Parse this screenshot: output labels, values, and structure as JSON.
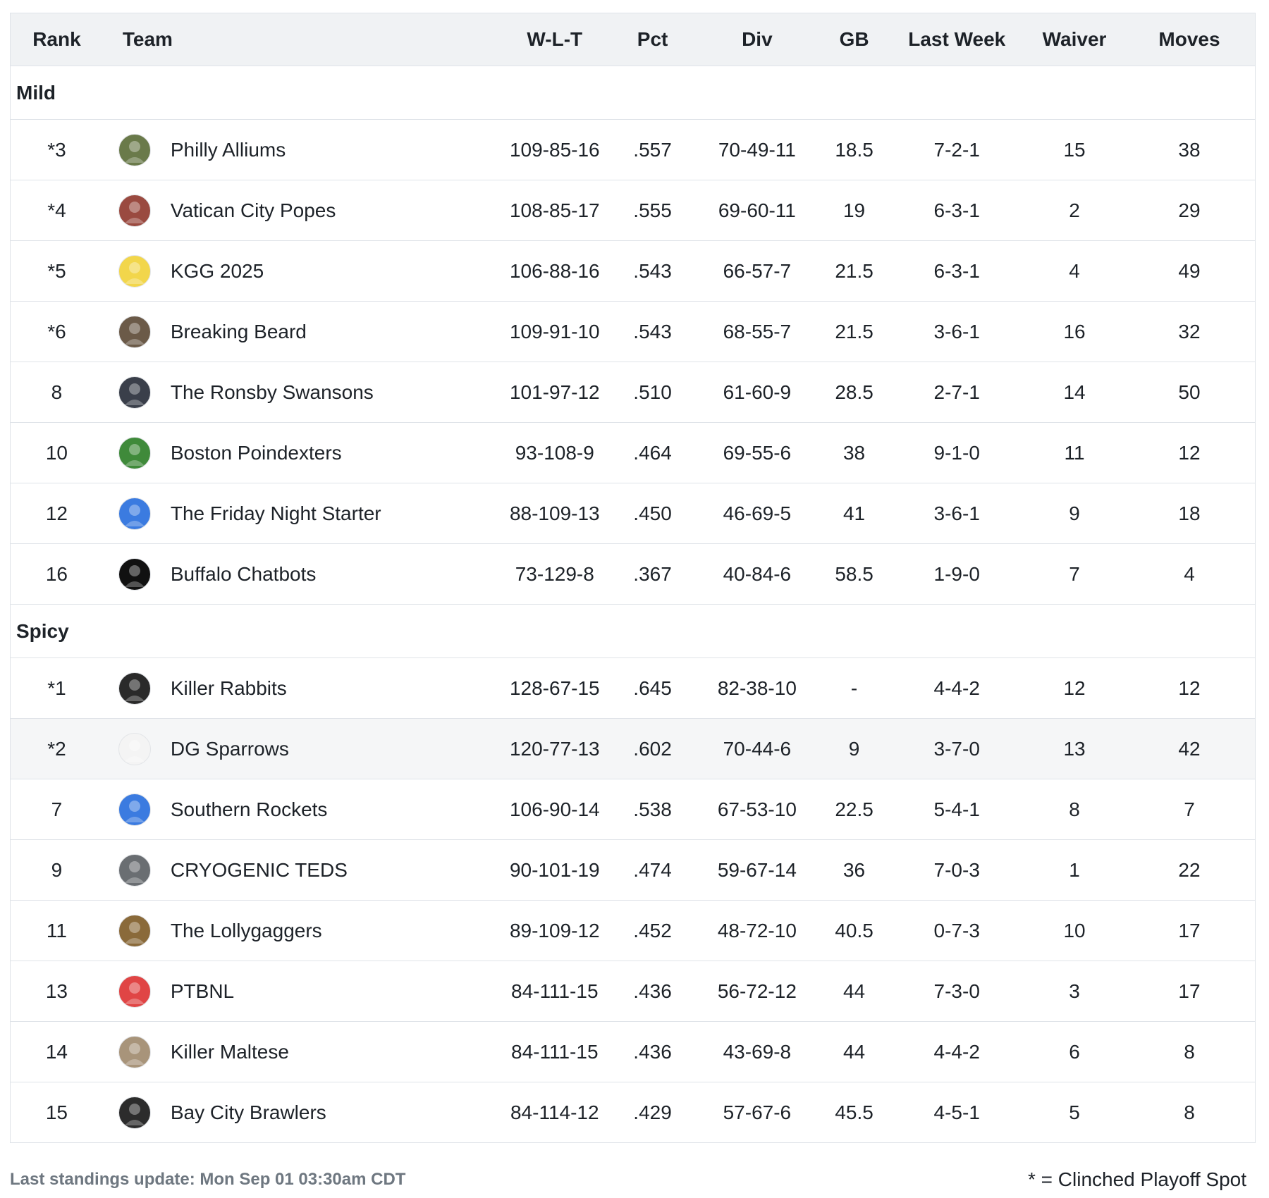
{
  "headers": {
    "rank": "Rank",
    "team": "Team",
    "wlt": "W-L-T",
    "pct": "Pct",
    "div": "Div",
    "gb": "GB",
    "last_week": "Last Week",
    "waiver": "Waiver",
    "moves": "Moves"
  },
  "colors": {
    "header_bg": "#f0f2f4",
    "highlight_row": "#f5f6f7",
    "border": "#dfe3e8"
  },
  "sections": [
    {
      "name": "Mild",
      "rows": [
        {
          "rank": "*3",
          "team": "Philly Alliums",
          "wlt": "109-85-16",
          "pct": ".557",
          "div": "70-49-11",
          "gb": "18.5",
          "last_week": "7-2-1",
          "waiver": "15",
          "moves": "38",
          "avatar": "garden-avatar-icon",
          "color": "#6a7a4a"
        },
        {
          "rank": "*4",
          "team": "Vatican City Popes",
          "wlt": "108-85-17",
          "pct": ".555",
          "div": "69-60-11",
          "gb": "19",
          "last_week": "6-3-1",
          "waiver": "2",
          "moves": "29",
          "avatar": "pope-avatar-icon",
          "color": "#9a4a40"
        },
        {
          "rank": "*5",
          "team": "KGG 2025",
          "wlt": "106-88-16",
          "pct": ".543",
          "div": "66-57-7",
          "gb": "21.5",
          "last_week": "6-3-1",
          "waiver": "4",
          "moves": "49",
          "avatar": "cap-avatar-icon",
          "color": "#f2d64b"
        },
        {
          "rank": "*6",
          "team": "Breaking Beard",
          "wlt": "109-91-10",
          "pct": ".543",
          "div": "68-55-7",
          "gb": "21.5",
          "last_week": "3-6-1",
          "waiver": "16",
          "moves": "32",
          "avatar": "bearded-man-avatar-icon",
          "color": "#6b5a48"
        },
        {
          "rank": "8",
          "team": "The Ronsby Swansons",
          "wlt": "101-97-12",
          "pct": ".510",
          "div": "61-60-9",
          "gb": "28.5",
          "last_week": "2-7-1",
          "waiver": "14",
          "moves": "50",
          "avatar": "player-photo-avatar-icon",
          "color": "#3a3f4a"
        },
        {
          "rank": "10",
          "team": "Boston Poindexters",
          "wlt": "93-108-9",
          "pct": ".464",
          "div": "69-55-6",
          "gb": "38",
          "last_week": "9-1-0",
          "waiver": "11",
          "moves": "12",
          "avatar": "green-monster-avatar-icon",
          "color": "#3f8a3a"
        },
        {
          "rank": "12",
          "team": "The Friday Night Starter",
          "wlt": "88-109-13",
          "pct": ".450",
          "div": "46-69-5",
          "gb": "41",
          "last_week": "3-6-1",
          "waiver": "9",
          "moves": "18",
          "avatar": "blue-cap-avatar-icon",
          "color": "#3b7be0"
        },
        {
          "rank": "16",
          "team": "Buffalo Chatbots",
          "wlt": "73-129-8",
          "pct": ".367",
          "div": "40-84-6",
          "gb": "58.5",
          "last_week": "1-9-0",
          "waiver": "7",
          "moves": "4",
          "avatar": "red-eye-avatar-icon",
          "color": "#111111"
        }
      ]
    },
    {
      "name": "Spicy",
      "rows": [
        {
          "rank": "*1",
          "team": "Killer Rabbits",
          "wlt": "128-67-15",
          "pct": ".645",
          "div": "82-38-10",
          "gb": "-",
          "last_week": "4-4-2",
          "waiver": "12",
          "moves": "12",
          "avatar": "rabbit-avatar-icon",
          "color": "#2a2a2a"
        },
        {
          "rank": "*2",
          "team": "DG Sparrows",
          "wlt": "120-77-13",
          "pct": ".602",
          "div": "70-44-6",
          "gb": "9",
          "last_week": "3-7-0",
          "waiver": "13",
          "moves": "42",
          "avatar": "sparrow-avatar-icon",
          "color": "#f4f4f4",
          "highlight": true
        },
        {
          "rank": "7",
          "team": "Southern Rockets",
          "wlt": "106-90-14",
          "pct": ".538",
          "div": "67-53-10",
          "gb": "22.5",
          "last_week": "5-4-1",
          "waiver": "8",
          "moves": "7",
          "avatar": "rocket-avatar-icon",
          "color": "#3b7be0"
        },
        {
          "rank": "9",
          "team": "CRYOGENIC TEDS",
          "wlt": "90-101-19",
          "pct": ".474",
          "div": "59-67-14",
          "gb": "36",
          "last_week": "7-0-3",
          "waiver": "1",
          "moves": "22",
          "avatar": "cryo-jar-avatar-icon",
          "color": "#6a6e72"
        },
        {
          "rank": "11",
          "team": "The Lollygaggers",
          "wlt": "89-109-12",
          "pct": ".452",
          "div": "48-72-10",
          "gb": "40.5",
          "last_week": "0-7-3",
          "waiver": "10",
          "moves": "17",
          "avatar": "lollygagger-avatar-icon",
          "color": "#8a6a3a"
        },
        {
          "rank": "13",
          "team": "PTBNL",
          "wlt": "84-111-15",
          "pct": ".436",
          "div": "56-72-12",
          "gb": "44",
          "last_week": "7-3-0",
          "waiver": "3",
          "moves": "17",
          "avatar": "red-cap-avatar-icon",
          "color": "#e04545"
        },
        {
          "rank": "14",
          "team": "Killer Maltese",
          "wlt": "84-111-15",
          "pct": ".436",
          "div": "43-69-8",
          "gb": "44",
          "last_week": "4-4-2",
          "waiver": "6",
          "moves": "8",
          "avatar": "maltese-dog-avatar-icon",
          "color": "#a8947a"
        },
        {
          "rank": "15",
          "team": "Bay City Brawlers",
          "wlt": "84-114-12",
          "pct": ".429",
          "div": "57-67-6",
          "gb": "45.5",
          "last_week": "4-5-1",
          "waiver": "5",
          "moves": "8",
          "avatar": "bulldog-avatar-icon",
          "color": "#2c2c2c"
        }
      ]
    }
  ],
  "footer": {
    "last_update": "Last standings update: Mon Sep 01 03:30am CDT",
    "legend": "* = Clinched Playoff Spot"
  }
}
